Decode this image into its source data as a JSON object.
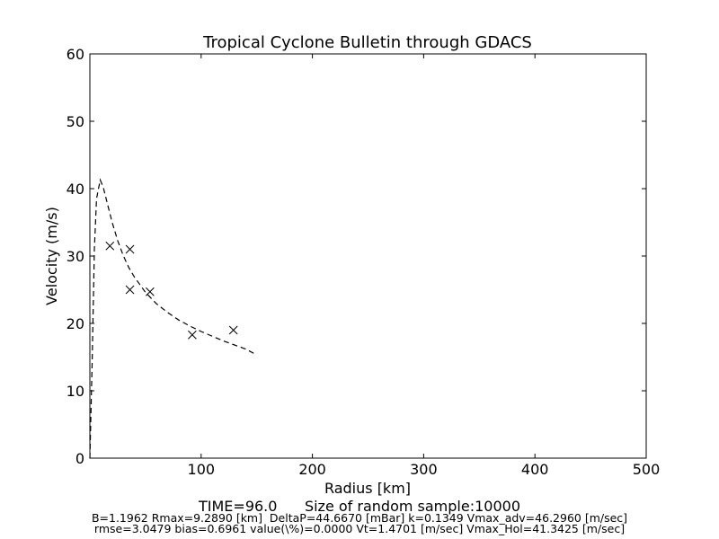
{
  "chart_data": {
    "type": "scatter",
    "title": "Tropical Cyclone Bulletin through GDACS",
    "xlabel": "Radius [km]",
    "ylabel": "Velocity (m/s)",
    "xlim": [
      0,
      500
    ],
    "ylim": [
      0,
      60
    ],
    "xticks": [
      100,
      200,
      300,
      400,
      500
    ],
    "xtick_labels": [
      "100",
      "200",
      "300",
      "400",
      "500"
    ],
    "yticks": [
      0,
      10,
      20,
      30,
      40,
      50,
      60
    ],
    "ytick_labels": [
      "0",
      "10",
      "20",
      "30",
      "40",
      "50",
      "60"
    ],
    "grid": false,
    "series": [
      {
        "marker": "x",
        "color": "#000000",
        "x": [
          18,
          36,
          36,
          54,
          92,
          129
        ],
        "y": [
          31.5,
          31.0,
          25.0,
          24.7,
          18.3,
          19.0
        ]
      },
      {
        "style": "dashed",
        "color": "#000000",
        "x": [
          0,
          2,
          4,
          6,
          9.289,
          12,
          16,
          20,
          25,
          30,
          35,
          40,
          50,
          60,
          70,
          80,
          90,
          100,
          110,
          120,
          130,
          140,
          148
        ],
        "y": [
          0,
          14,
          31,
          38.5,
          41.3,
          40.2,
          37.6,
          35.0,
          32.3,
          30.1,
          28.3,
          26.9,
          24.6,
          22.9,
          21.6,
          20.5,
          19.6,
          18.8,
          18.1,
          17.4,
          16.8,
          16.2,
          15.5
        ]
      }
    ]
  },
  "caption": {
    "time_line": "TIME=96.0      Size of random sample:10000",
    "line1": "B=1.1962 Rmax=9.2890 [km]  DeltaP=44.6670 [mBar] k=0.1349 Vmax_adv=46.2960 [m/sec]",
    "line2": "rmse=3.0479 bias=0.6961 value(\\%)=0.0000 Vt=1.4701 [m/sec] Vmax_Hol=41.3425 [m/sec]"
  }
}
